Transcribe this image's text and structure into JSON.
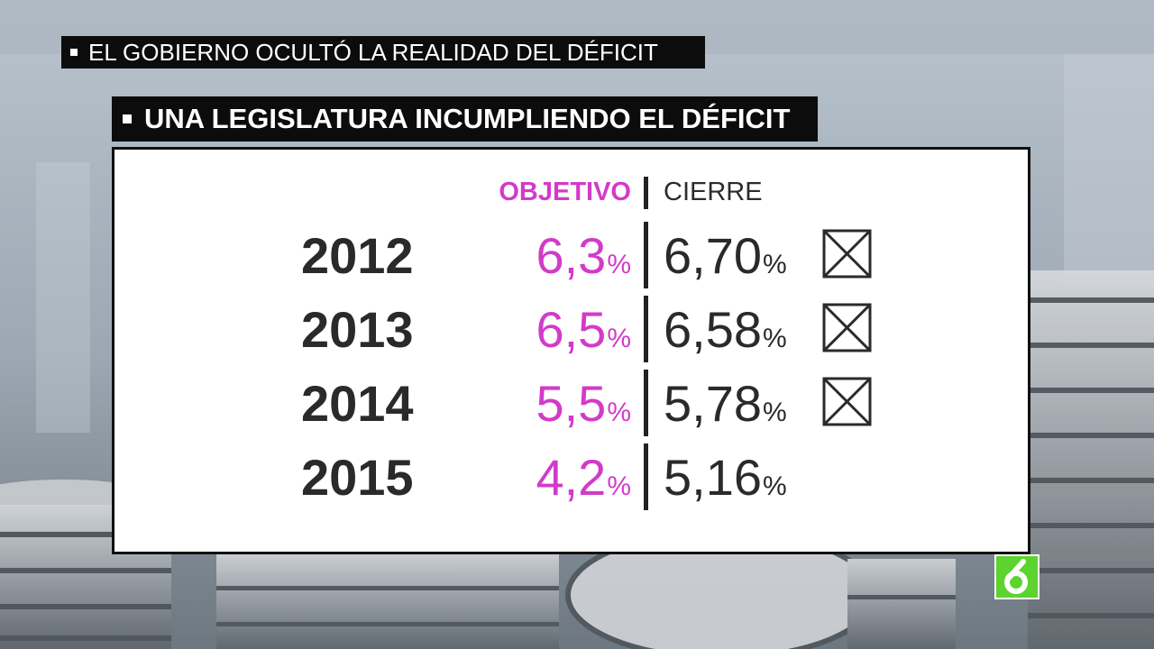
{
  "banners": {
    "top": "EL GOBIERNO OCULTÓ LA REALIDAD DEL DÉFICIT",
    "subtitle": "UNA LEGISLATURA INCUMPLIENDO EL DÉFICIT"
  },
  "table": {
    "headers": {
      "objetivo": "OBJETIVO",
      "cierre": "CIERRE"
    },
    "rows": [
      {
        "year": "2012",
        "objetivo": "6,3",
        "cierre": "6,70",
        "missed": true
      },
      {
        "year": "2013",
        "objetivo": "6,5",
        "cierre": "6,58",
        "missed": true
      },
      {
        "year": "2014",
        "objetivo": "5,5",
        "cierre": "5,78",
        "missed": true
      },
      {
        "year": "2015",
        "objetivo": "4,2",
        "cierre": "5,16",
        "missed": false
      }
    ],
    "percent_sign": "%"
  },
  "colors": {
    "accent_magenta": "#d23bc9",
    "text_dark": "#2a2a2a",
    "banner_bg": "#0c0c0c",
    "logo_green": "#5cd32f"
  },
  "icons": [
    "checkbox-crossed-icon",
    "channel-logo-icon"
  ]
}
